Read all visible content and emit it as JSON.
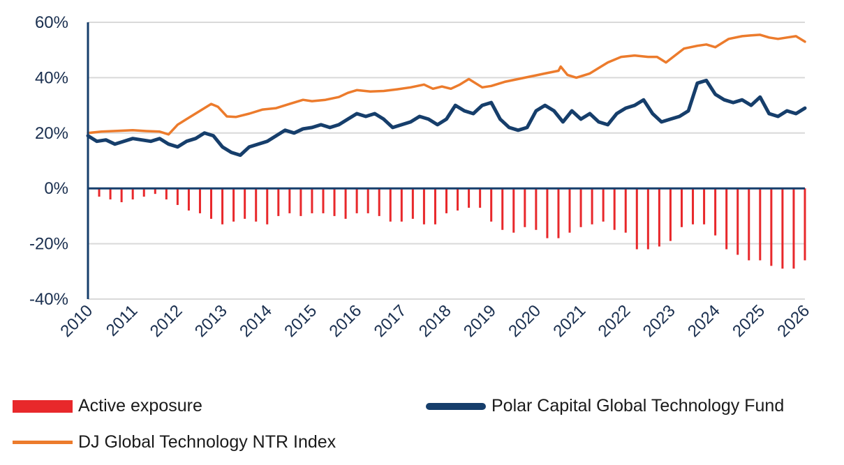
{
  "chart_data": {
    "type": "line",
    "title": "",
    "xlabel": "",
    "ylabel": "",
    "ylim": [
      -40,
      60
    ],
    "y_ticks": [
      "60%",
      "40%",
      "20%",
      "0%",
      "-20%",
      "-40%"
    ],
    "y_tick_values": [
      60,
      40,
      20,
      0,
      -20,
      -40
    ],
    "x_ticks": [
      "2010",
      "2011",
      "2012",
      "2013",
      "2014",
      "2015",
      "2016",
      "2017",
      "2018",
      "2019",
      "2020",
      "2021",
      "2022",
      "2023",
      "2024",
      "2025",
      "2026"
    ],
    "xlim": [
      2010,
      2026
    ],
    "grid": "horizontal",
    "legend_position": "bottom",
    "colors": {
      "active": "#e8282b",
      "fund": "#163e6b",
      "index": "#ec7b2c",
      "axis": "#163e6b",
      "grid": "#d9d9d9"
    },
    "series": [
      {
        "name": "DJ Global Technology NTR Index",
        "kind": "line",
        "color": "#ec7b2c",
        "x": [
          2010.0,
          2010.3,
          2010.7,
          2011.0,
          2011.3,
          2011.6,
          2011.8,
          2012.0,
          2012.2,
          2012.5,
          2012.75,
          2012.9,
          2013.1,
          2013.3,
          2013.6,
          2013.9,
          2014.2,
          2014.5,
          2014.8,
          2015.0,
          2015.3,
          2015.6,
          2015.8,
          2016.0,
          2016.3,
          2016.6,
          2016.9,
          2017.2,
          2017.5,
          2017.7,
          2017.9,
          2018.1,
          2018.3,
          2018.5,
          2018.8,
          2019.0,
          2019.3,
          2019.6,
          2019.9,
          2020.2,
          2020.5,
          2020.55,
          2020.7,
          2020.9,
          2021.2,
          2021.4,
          2021.6,
          2021.9,
          2022.2,
          2022.5,
          2022.7,
          2022.9,
          2023.1,
          2023.3,
          2023.6,
          2023.8,
          2024.0,
          2024.3,
          2024.6,
          2024.8,
          2025.0,
          2025.2,
          2025.4,
          2025.6,
          2025.8,
          2026.0
        ],
        "values": [
          20,
          20.5,
          20.8,
          21,
          20.7,
          20.5,
          19.5,
          23,
          25,
          28,
          30.5,
          29.5,
          26,
          25.8,
          27,
          28.5,
          29,
          30.5,
          32,
          31.5,
          32,
          33,
          34.5,
          35.5,
          35,
          35.2,
          35.8,
          36.5,
          37.5,
          36,
          36.8,
          36,
          37.5,
          39.5,
          36.5,
          37,
          38.5,
          39.5,
          40.5,
          41.5,
          42.5,
          44,
          41,
          40,
          41.5,
          43.5,
          45.5,
          47.5,
          48,
          47.5,
          47.5,
          45.5,
          48,
          50.5,
          51.5,
          52,
          51,
          54,
          55,
          55.3,
          55.5,
          54.5,
          54,
          54.5,
          55,
          53
        ]
      },
      {
        "name": "Polar Capital Global Technology Fund",
        "kind": "line",
        "color": "#163e6b",
        "x": [
          2010.0,
          2010.2,
          2010.4,
          2010.6,
          2010.8,
          2011.0,
          2011.2,
          2011.4,
          2011.6,
          2011.8,
          2012.0,
          2012.2,
          2012.4,
          2012.6,
          2012.8,
          2013.0,
          2013.2,
          2013.4,
          2013.6,
          2013.8,
          2014.0,
          2014.2,
          2014.4,
          2014.6,
          2014.8,
          2015.0,
          2015.2,
          2015.4,
          2015.6,
          2015.8,
          2016.0,
          2016.2,
          2016.4,
          2016.6,
          2016.8,
          2017.0,
          2017.2,
          2017.4,
          2017.6,
          2017.8,
          2018.0,
          2018.2,
          2018.4,
          2018.6,
          2018.8,
          2019.0,
          2019.2,
          2019.4,
          2019.6,
          2019.8,
          2020.0,
          2020.2,
          2020.4,
          2020.6,
          2020.8,
          2021.0,
          2021.2,
          2021.4,
          2021.6,
          2021.8,
          2022.0,
          2022.2,
          2022.4,
          2022.6,
          2022.8,
          2023.0,
          2023.2,
          2023.4,
          2023.6,
          2023.8,
          2024.0,
          2024.2,
          2024.4,
          2024.6,
          2024.8,
          2025.0,
          2025.2,
          2025.4,
          2025.6,
          2025.8,
          2026.0
        ],
        "values": [
          19,
          17,
          17.5,
          16,
          17,
          18,
          17.5,
          17,
          18,
          16,
          15,
          17,
          18,
          20,
          19,
          15,
          13,
          12,
          15,
          16,
          17,
          19,
          21,
          20,
          21.5,
          22,
          23,
          22,
          23,
          25,
          27,
          26,
          27,
          25,
          22,
          23,
          24,
          26,
          25,
          23,
          25,
          30,
          28,
          27,
          30,
          31,
          25,
          22,
          21,
          22,
          28,
          30,
          28,
          24,
          28,
          25,
          27,
          24,
          23,
          27,
          29,
          30,
          32,
          27,
          24,
          25,
          26,
          28,
          38,
          39,
          34,
          32,
          31,
          32,
          30,
          33,
          27,
          26,
          28,
          27,
          29
        ]
      },
      {
        "name": "Active exposure",
        "kind": "bar",
        "color": "#e8282b",
        "x": [
          2010.0,
          2010.25,
          2010.5,
          2010.75,
          2011.0,
          2011.25,
          2011.5,
          2011.75,
          2012.0,
          2012.25,
          2012.5,
          2012.75,
          2013.0,
          2013.25,
          2013.5,
          2013.75,
          2014.0,
          2014.25,
          2014.5,
          2014.75,
          2015.0,
          2015.25,
          2015.5,
          2015.75,
          2016.0,
          2016.25,
          2016.5,
          2016.75,
          2017.0,
          2017.25,
          2017.5,
          2017.75,
          2018.0,
          2018.25,
          2018.5,
          2018.75,
          2019.0,
          2019.25,
          2019.5,
          2019.75,
          2020.0,
          2020.25,
          2020.5,
          2020.75,
          2021.0,
          2021.25,
          2021.5,
          2021.75,
          2022.0,
          2022.25,
          2022.5,
          2022.75,
          2023.0,
          2023.25,
          2023.5,
          2023.75,
          2024.0,
          2024.25,
          2024.5,
          2024.75,
          2025.0,
          2025.25,
          2025.5,
          2025.75,
          2026.0
        ],
        "values": [
          -1,
          -3,
          -4,
          -5,
          -4,
          -3,
          -2,
          -4,
          -6,
          -8,
          -9,
          -11,
          -13,
          -12,
          -11,
          -12,
          -13,
          -10,
          -9,
          -10,
          -9,
          -9,
          -10,
          -11,
          -9,
          -9,
          -10,
          -12,
          -12,
          -11,
          -13,
          -13,
          -9,
          -8,
          -7,
          -7,
          -12,
          -15,
          -16,
          -14,
          -15,
          -18,
          -18,
          -16,
          -14,
          -13,
          -12,
          -15,
          -16,
          -22,
          -22,
          -21,
          -19,
          -14,
          -13,
          -13,
          -17,
          -22,
          -24,
          -26,
          -26,
          -28,
          -29,
          -29,
          -26
        ]
      }
    ]
  },
  "legend": {
    "active": "Active exposure",
    "fund": "Polar Capital Global Technology Fund",
    "index": "DJ Global Technology NTR Index"
  }
}
